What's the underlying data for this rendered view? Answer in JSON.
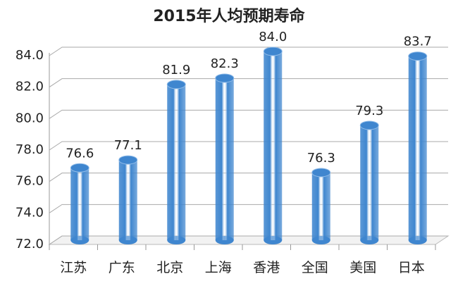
{
  "chart_data": {
    "type": "bar",
    "title": "2015年人均预期寿命",
    "categories": [
      "江苏",
      "广东",
      "北京",
      "上海",
      "香港",
      "全国",
      "美国",
      "日本"
    ],
    "values": [
      76.6,
      77.1,
      81.9,
      82.3,
      84,
      76.3,
      79.3,
      83.7
    ],
    "value_labels": [
      "76.6",
      "77.1",
      "81.9",
      "82.3",
      "84.0",
      "76.3",
      "79.3",
      "83.7"
    ],
    "color": "#3f86cf",
    "ylim": [
      72,
      84
    ],
    "yticks": [
      {
        "value": 72,
        "label": "72.0"
      },
      {
        "value": 74,
        "label": "74.0"
      },
      {
        "value": 76,
        "label": "76.0"
      },
      {
        "value": 78,
        "label": "78.0"
      },
      {
        "value": 80,
        "label": "80.0"
      },
      {
        "value": 82,
        "label": "82.0"
      },
      {
        "value": 84,
        "label": "84.0"
      }
    ],
    "grid": true
  }
}
